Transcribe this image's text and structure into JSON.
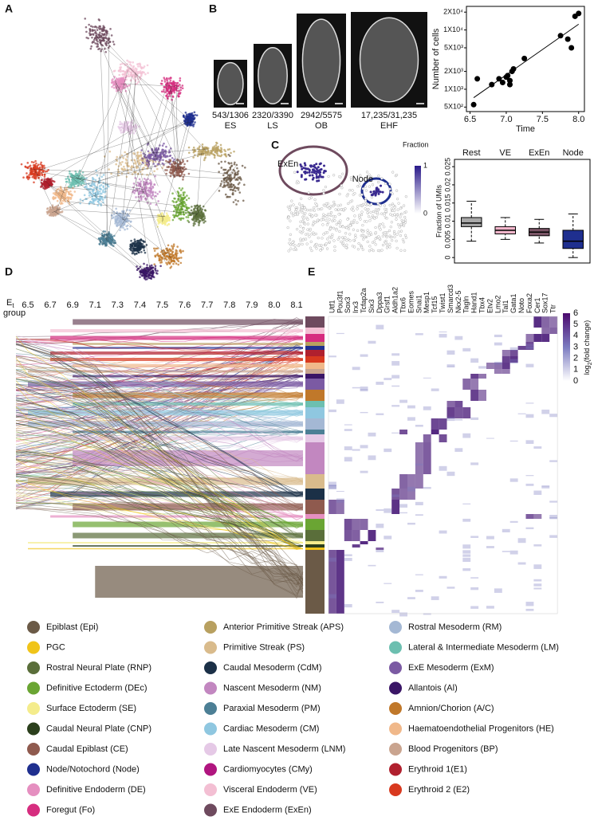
{
  "panel_labels": {
    "a": "A",
    "b": "B",
    "c": "C",
    "d": "D",
    "e": "E"
  },
  "embryo_images": [
    {
      "count": "543/1306",
      "stage": "ES"
    },
    {
      "count": "2320/3390",
      "stage": "LS"
    },
    {
      "count": "2942/5575",
      "stage": "OB"
    },
    {
      "count": "17,235/31,235",
      "stage": "EHF"
    }
  ],
  "chart_data": [
    {
      "type": "scatter",
      "x_label": "Time",
      "y_label": "Number of cells",
      "color": "#000000",
      "log_y": true,
      "x": [
        6.55,
        6.6,
        6.8,
        6.9,
        6.95,
        7.0,
        7.02,
        7.05,
        7.05,
        7.08,
        7.1,
        7.25,
        7.75,
        7.85,
        7.9,
        7.95,
        8.0
      ],
      "values": [
        550,
        1500,
        1200,
        1500,
        1300,
        1600,
        1700,
        1400,
        1200,
        2000,
        2200,
        3300,
        8000,
        7000,
        5000,
        17000,
        19000
      ],
      "trendline": {
        "x": [
          6.55,
          8.0
        ],
        "y": [
          720,
          12500
        ]
      },
      "xlim": [
        6.45,
        8.08
      ],
      "ylim": [
        420,
        25000
      ],
      "xticks": [
        6.5,
        {
          "value": 7,
          "label": "7.0"
        },
        7.5,
        {
          "value": 8,
          "label": "8.0"
        }
      ],
      "yticks": [
        {
          "value": 500,
          "label": "5X10²"
        },
        {
          "value": 1000,
          "label": "1X10³"
        },
        {
          "value": 2000,
          "label": "2X10³"
        },
        {
          "value": 5000,
          "label": "5X10³"
        },
        {
          "value": 10000,
          "label": "1X10⁴"
        },
        {
          "value": 20000,
          "label": "2X10⁴"
        }
      ]
    },
    {
      "type": "box",
      "y_label": "Fraction of UMIs",
      "categories": [
        "Rest",
        "VE",
        "ExEn",
        "Node"
      ],
      "boxes": [
        {
          "low": 0.0045,
          "q1": 0.0085,
          "median": 0.0095,
          "q3": 0.011,
          "high": 0.0155,
          "color": "#a8a8a8"
        },
        {
          "low": 0.005,
          "q1": 0.0065,
          "median": 0.0075,
          "q3": 0.0085,
          "high": 0.011,
          "color": "#f3b6cb"
        },
        {
          "low": 0.004,
          "q1": 0.006,
          "median": 0.007,
          "q3": 0.008,
          "high": 0.0105,
          "color": "#7a5566"
        },
        {
          "low": 0,
          "q1": 0.0025,
          "median": 0.0045,
          "q3": 0.0075,
          "high": 0.012,
          "color": "#1f2f8f"
        }
      ],
      "ylim": [
        -0.0015,
        0.027
      ],
      "yticks": [
        0,
        0.005,
        0.01,
        0.015,
        0.02,
        0.025
      ]
    }
  ],
  "umap_c": {
    "labels": [
      "ExEn",
      "Node"
    ],
    "colorbar_title": "Fraction",
    "colorbar_lim": [
      0,
      1
    ],
    "colorbar_ticks": [
      1,
      0
    ]
  },
  "panel_d": {
    "axis_label": "E",
    "axis_label_subscript": "t",
    "axis_label_line2": "group",
    "stages": [
      "6.5",
      "6.7",
      "6.9",
      "7.1",
      "7.3",
      "7.4",
      "7.5",
      "7.6",
      "7.7",
      "7.8",
      "7.9",
      "8.0",
      "8.1"
    ]
  },
  "panel_e": {
    "genes": [
      "Utf1",
      "Pou3f1",
      "Sox3",
      "Irx3",
      "Tcfap2a",
      "Six3",
      "Dppa3",
      "Grsf1",
      "Aldh1a2",
      "Tbx6",
      "Eomes",
      "Snai1",
      "Mesp1",
      "Tcf15",
      "Twist1",
      "Smarcd3",
      "Nkx2-5",
      "Tagln",
      "Hand1",
      "Tbx4",
      "Etv2",
      "Lmo2",
      "Tal1",
      "Gata1",
      "Noto",
      "Foxa2",
      "Cer1",
      "Sox17",
      "Ttr"
    ],
    "colorbar_label": "log",
    "colorbar_label_subscript": "2",
    "colorbar_label_rest": "(fold change)",
    "colorbar_lim": [
      0,
      6
    ],
    "colorbar_ticks": [
      6,
      5,
      4,
      3,
      2,
      1,
      0
    ]
  },
  "legend": [
    {
      "name": "Epiblast (Epi)",
      "color": "#6b5a47"
    },
    {
      "name": "PGC",
      "color": "#f0c419"
    },
    {
      "name": "Rostral Neural Plate (RNP)",
      "color": "#5a6e3a"
    },
    {
      "name": "Definitive Ectoderm (DEc)",
      "color": "#6aa533"
    },
    {
      "name": "Surface Ectoderm (SE)",
      "color": "#f4ec8c"
    },
    {
      "name": "Caudal Neural Plate (CNP)",
      "color": "#2b3f1c"
    },
    {
      "name": "Caudal Epiblast (CE)",
      "color": "#8f5a4e"
    },
    {
      "name": "Node/Notochord (Node)",
      "color": "#1f2f8f"
    },
    {
      "name": "Definitive Endoderm (DE)",
      "color": "#e58fc0"
    },
    {
      "name": "Foregut (Fo)",
      "color": "#d62d7f"
    },
    {
      "name": "Anterior Primitive Streak (APS)",
      "color": "#b8a060"
    },
    {
      "name": "Primitive Streak (PS)",
      "color": "#d9bb8c"
    },
    {
      "name": "Caudal Mesoderm (CdM)",
      "color": "#1b3047"
    },
    {
      "name": "Nascent Mesoderm (NM)",
      "color": "#c287c0"
    },
    {
      "name": "Paraxial Mesoderm (PM)",
      "color": "#4c7f95"
    },
    {
      "name": "Cardiac Mesoderm (CM)",
      "color": "#8fc7e0"
    },
    {
      "name": "Late Nascent Mesoderm (LNM)",
      "color": "#e5c9e6"
    },
    {
      "name": "Cardiomyocytes (CMy)",
      "color": "#b0157f"
    },
    {
      "name": "Visceral Endoderm (VE)",
      "color": "#f3bfd3"
    },
    {
      "name": "ExE Endoderm (ExEn)",
      "color": "#6e4a5e"
    },
    {
      "name": "Rostral Mesoderm (RM)",
      "color": "#a4b8d4"
    },
    {
      "name": "Lateral & Intermediate Mesoderm (LM)",
      "color": "#6cbfb0"
    },
    {
      "name": "ExE Mesoderm (ExM)",
      "color": "#7b5aa3"
    },
    {
      "name": "Allantois (Al)",
      "color": "#3a1566"
    },
    {
      "name": "Amnion/Chorion (A/C)",
      "color": "#c0782a"
    },
    {
      "name": "Haematoendothelial Progenitors (HE)",
      "color": "#f0b88a"
    },
    {
      "name": "Blood Progenitors (BP)",
      "color": "#c9a48f"
    },
    {
      "name": "Erythroid 1(E1)",
      "color": "#b0202e"
    },
    {
      "name": "Erythroid 2 (E2)",
      "color": "#d8391f"
    }
  ]
}
